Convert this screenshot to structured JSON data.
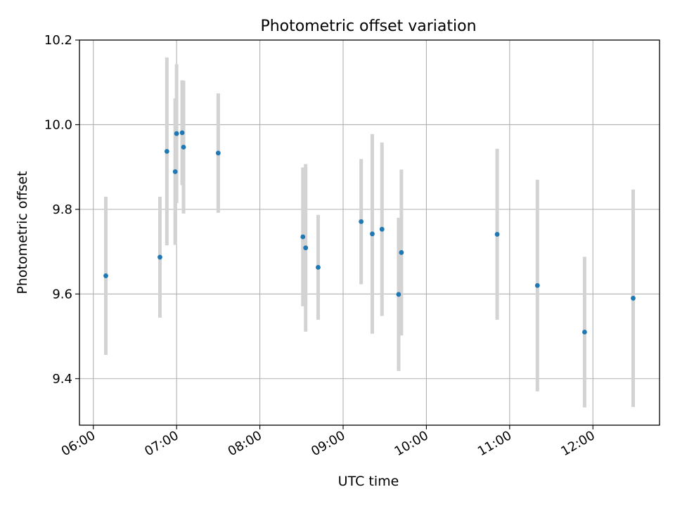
{
  "chart_data": {
    "type": "scatter",
    "title": "Photometric offset variation",
    "xlabel": "UTC time",
    "ylabel": "Photometric offset",
    "xlim": [
      "05:50",
      "12:48"
    ],
    "ylim": [
      9.29,
      10.2
    ],
    "x_ticks": [
      "06:00",
      "07:00",
      "08:00",
      "09:00",
      "10:00",
      "11:00",
      "12:00"
    ],
    "y_ticks": [
      "9.4",
      "9.6",
      "9.8",
      "10.0",
      "10.2"
    ],
    "grid": true,
    "marker_color": "#1f77b4",
    "errorbar_color": "#d3d3d3",
    "points": [
      {
        "x": "06:09",
        "y": 9.643,
        "yerr": 0.187
      },
      {
        "x": "06:48",
        "y": 9.687,
        "yerr": 0.143
      },
      {
        "x": "06:53",
        "y": 9.937,
        "yerr": 0.222
      },
      {
        "x": "06:59",
        "y": 9.889,
        "yerr": 0.173
      },
      {
        "x": "07:00",
        "y": 9.979,
        "yerr": 0.164
      },
      {
        "x": "07:04",
        "y": 9.981,
        "yerr": 0.124
      },
      {
        "x": "07:05",
        "y": 9.947,
        "yerr": 0.157
      },
      {
        "x": "07:30",
        "y": 9.933,
        "yerr": 0.141
      },
      {
        "x": "08:31",
        "y": 9.735,
        "yerr": 0.164
      },
      {
        "x": "08:33",
        "y": 9.709,
        "yerr": 0.198
      },
      {
        "x": "08:42",
        "y": 9.663,
        "yerr": 0.124
      },
      {
        "x": "09:13",
        "y": 9.771,
        "yerr": 0.148
      },
      {
        "x": "09:21",
        "y": 9.742,
        "yerr": 0.236
      },
      {
        "x": "09:28",
        "y": 9.753,
        "yerr": 0.205
      },
      {
        "x": "09:40",
        "y": 9.599,
        "yerr": 0.181
      },
      {
        "x": "09:42",
        "y": 9.698,
        "yerr": 0.196
      },
      {
        "x": "10:51",
        "y": 9.741,
        "yerr": 0.202
      },
      {
        "x": "11:20",
        "y": 9.62,
        "yerr": 0.25
      },
      {
        "x": "11:54",
        "y": 9.51,
        "yerr": 0.178
      },
      {
        "x": "12:29",
        "y": 9.59,
        "yerr": 0.257
      }
    ]
  }
}
